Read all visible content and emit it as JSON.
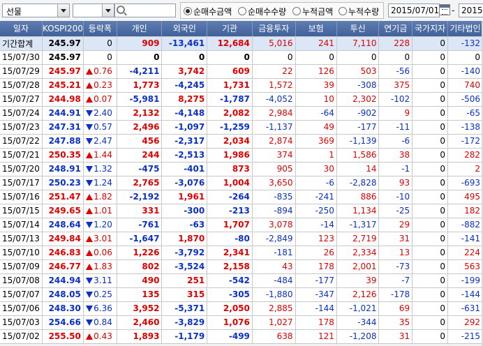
{
  "toolbar": {
    "market_select": "선물",
    "date_from": "2015/07/01",
    "date_to": "2015",
    "date_sep": "-",
    "radio_options": [
      {
        "label": "순매수금액",
        "checked": true
      },
      {
        "label": "순매수수량",
        "checked": false
      },
      {
        "label": "누적금액",
        "checked": false
      },
      {
        "label": "누적수량",
        "checked": false
      }
    ]
  },
  "columns": [
    "일자",
    "KOSPI200",
    "등락폭",
    "개인",
    "외국인",
    "기관",
    "금융투자",
    "보험",
    "투신",
    "연기금",
    "국가지자",
    "기타법인"
  ],
  "rows": [
    {
      "date": "기간합계",
      "kospi": "245.97",
      "dir": "",
      "chg": "0",
      "ind": "909",
      "for": "-13,461",
      "inst": "12,684",
      "fin": "5,016",
      "ins": "241",
      "trust": "7,110",
      "pen": "228",
      "gov": "0",
      "etc": "-132",
      "summary": true
    },
    {
      "date": "15/07/30",
      "kospi": "245.97",
      "dir": "",
      "chg": "0",
      "ind": "0",
      "for": "0",
      "inst": "0",
      "fin": "0",
      "ins": "0",
      "trust": "0",
      "pen": "0",
      "gov": "0",
      "etc": "0"
    },
    {
      "date": "15/07/29",
      "kospi": "245.97",
      "dir": "up",
      "chg": "0.76",
      "ind": "-4,211",
      "for": "3,742",
      "inst": "609",
      "fin": "22",
      "ins": "126",
      "trust": "503",
      "pen": "-56",
      "gov": "0",
      "etc": "-140"
    },
    {
      "date": "15/07/28",
      "kospi": "245.21",
      "dir": "up",
      "chg": "0.23",
      "ind": "1,773",
      "for": "-4,245",
      "inst": "1,731",
      "fin": "1,572",
      "ins": "39",
      "trust": "-308",
      "pen": "375",
      "gov": "0",
      "etc": "740"
    },
    {
      "date": "15/07/27",
      "kospi": "244.98",
      "dir": "up",
      "chg": "0.07",
      "ind": "-5,981",
      "for": "8,275",
      "inst": "-1,787",
      "fin": "-4,052",
      "ins": "10",
      "trust": "2,302",
      "pen": "-102",
      "gov": "0",
      "etc": "-506"
    },
    {
      "date": "15/07/24",
      "kospi": "244.91",
      "dir": "dn",
      "chg": "2.40",
      "ind": "2,132",
      "for": "-4,148",
      "inst": "2,082",
      "fin": "2,984",
      "ins": "-64",
      "trust": "-902",
      "pen": "9",
      "gov": "0",
      "etc": "-65"
    },
    {
      "date": "15/07/23",
      "kospi": "247.31",
      "dir": "dn",
      "chg": "0.57",
      "ind": "2,496",
      "for": "-1,097",
      "inst": "-1,259",
      "fin": "-1,137",
      "ins": "49",
      "trust": "-177",
      "pen": "-11",
      "gov": "0",
      "etc": "-138"
    },
    {
      "date": "15/07/22",
      "kospi": "247.88",
      "dir": "dn",
      "chg": "2.47",
      "ind": "456",
      "for": "-2,317",
      "inst": "2,034",
      "fin": "2,874",
      "ins": "369",
      "trust": "-1,139",
      "pen": "-6",
      "gov": "0",
      "etc": "-172"
    },
    {
      "date": "15/07/21",
      "kospi": "250.35",
      "dir": "up",
      "chg": "1.44",
      "ind": "244",
      "for": "-2,513",
      "inst": "1,986",
      "fin": "374",
      "ins": "1",
      "trust": "1,586",
      "pen": "38",
      "gov": "0",
      "etc": "282"
    },
    {
      "date": "15/07/20",
      "kospi": "248.91",
      "dir": "dn",
      "chg": "1.32",
      "ind": "-475",
      "for": "-401",
      "inst": "873",
      "fin": "905",
      "ins": "30",
      "trust": "14",
      "pen": "-1",
      "gov": "0",
      "etc": "2"
    },
    {
      "date": "15/07/17",
      "kospi": "250.23",
      "dir": "dn",
      "chg": "1.24",
      "ind": "2,765",
      "for": "-3,076",
      "inst": "1,004",
      "fin": "3,650",
      "ins": "-6",
      "trust": "-2,828",
      "pen": "93",
      "gov": "0",
      "etc": "-693"
    },
    {
      "date": "15/07/16",
      "kospi": "251.47",
      "dir": "up",
      "chg": "1.82",
      "ind": "-2,192",
      "for": "1,961",
      "inst": "-264",
      "fin": "-835",
      "ins": "-241",
      "trust": "886",
      "pen": "-10",
      "gov": "0",
      "etc": "495"
    },
    {
      "date": "15/07/15",
      "kospi": "249.65",
      "dir": "up",
      "chg": "1.01",
      "ind": "331",
      "for": "-300",
      "inst": "-213",
      "fin": "-894",
      "ins": "-250",
      "trust": "1,134",
      "pen": "-25",
      "gov": "0",
      "etc": "182"
    },
    {
      "date": "15/07/14",
      "kospi": "248.64",
      "dir": "dn",
      "chg": "1.20",
      "ind": "-761",
      "for": "-63",
      "inst": "1,707",
      "fin": "3,078",
      "ins": "-14",
      "trust": "-1,317",
      "pen": "29",
      "gov": "0",
      "etc": "-882"
    },
    {
      "date": "15/07/13",
      "kospi": "249.84",
      "dir": "up",
      "chg": "3.01",
      "ind": "-1,647",
      "for": "1,870",
      "inst": "-80",
      "fin": "-2,849",
      "ins": "123",
      "trust": "2,719",
      "pen": "31",
      "gov": "0",
      "etc": "-141"
    },
    {
      "date": "15/07/10",
      "kospi": "246.83",
      "dir": "up",
      "chg": "0.06",
      "ind": "1,226",
      "for": "-3,792",
      "inst": "2,341",
      "fin": "-181",
      "ins": "26",
      "trust": "2,334",
      "pen": "13",
      "gov": "0",
      "etc": "224"
    },
    {
      "date": "15/07/09",
      "kospi": "246.77",
      "dir": "up",
      "chg": "1.83",
      "ind": "802",
      "for": "-3,524",
      "inst": "2,158",
      "fin": "43",
      "ins": "178",
      "trust": "2,001",
      "pen": "-73",
      "gov": "0",
      "etc": "563"
    },
    {
      "date": "15/07/08",
      "kospi": "244.94",
      "dir": "dn",
      "chg": "3.11",
      "ind": "490",
      "for": "251",
      "inst": "-542",
      "fin": "-484",
      "ins": "-177",
      "trust": "39",
      "pen": "-7",
      "gov": "0",
      "etc": "-199"
    },
    {
      "date": "15/07/07",
      "kospi": "248.05",
      "dir": "dn",
      "chg": "0.25",
      "ind": "135",
      "for": "315",
      "inst": "-305",
      "fin": "-1,880",
      "ins": "-347",
      "trust": "2,126",
      "pen": "-178",
      "gov": "0",
      "etc": "-144"
    },
    {
      "date": "15/07/06",
      "kospi": "248.30",
      "dir": "dn",
      "chg": "6.36",
      "ind": "3,952",
      "for": "-5,371",
      "inst": "2,050",
      "fin": "2,885",
      "ins": "-144",
      "trust": "-1,021",
      "pen": "69",
      "gov": "0",
      "etc": "-631"
    },
    {
      "date": "15/07/03",
      "kospi": "254.66",
      "dir": "dn",
      "chg": "0.84",
      "ind": "2,460",
      "for": "-3,829",
      "inst": "1,076",
      "fin": "1,027",
      "ins": "178",
      "trust": "-344",
      "pen": "35",
      "gov": "0",
      "etc": "292"
    },
    {
      "date": "15/07/02",
      "kospi": "255.50",
      "dir": "up",
      "chg": "0.43",
      "ind": "1,893",
      "for": "-1,179",
      "inst": "-499",
      "fin": "638",
      "ins": "121",
      "trust": "-1,208",
      "pen": "31",
      "gov": "0",
      "etc": "-215"
    }
  ]
}
